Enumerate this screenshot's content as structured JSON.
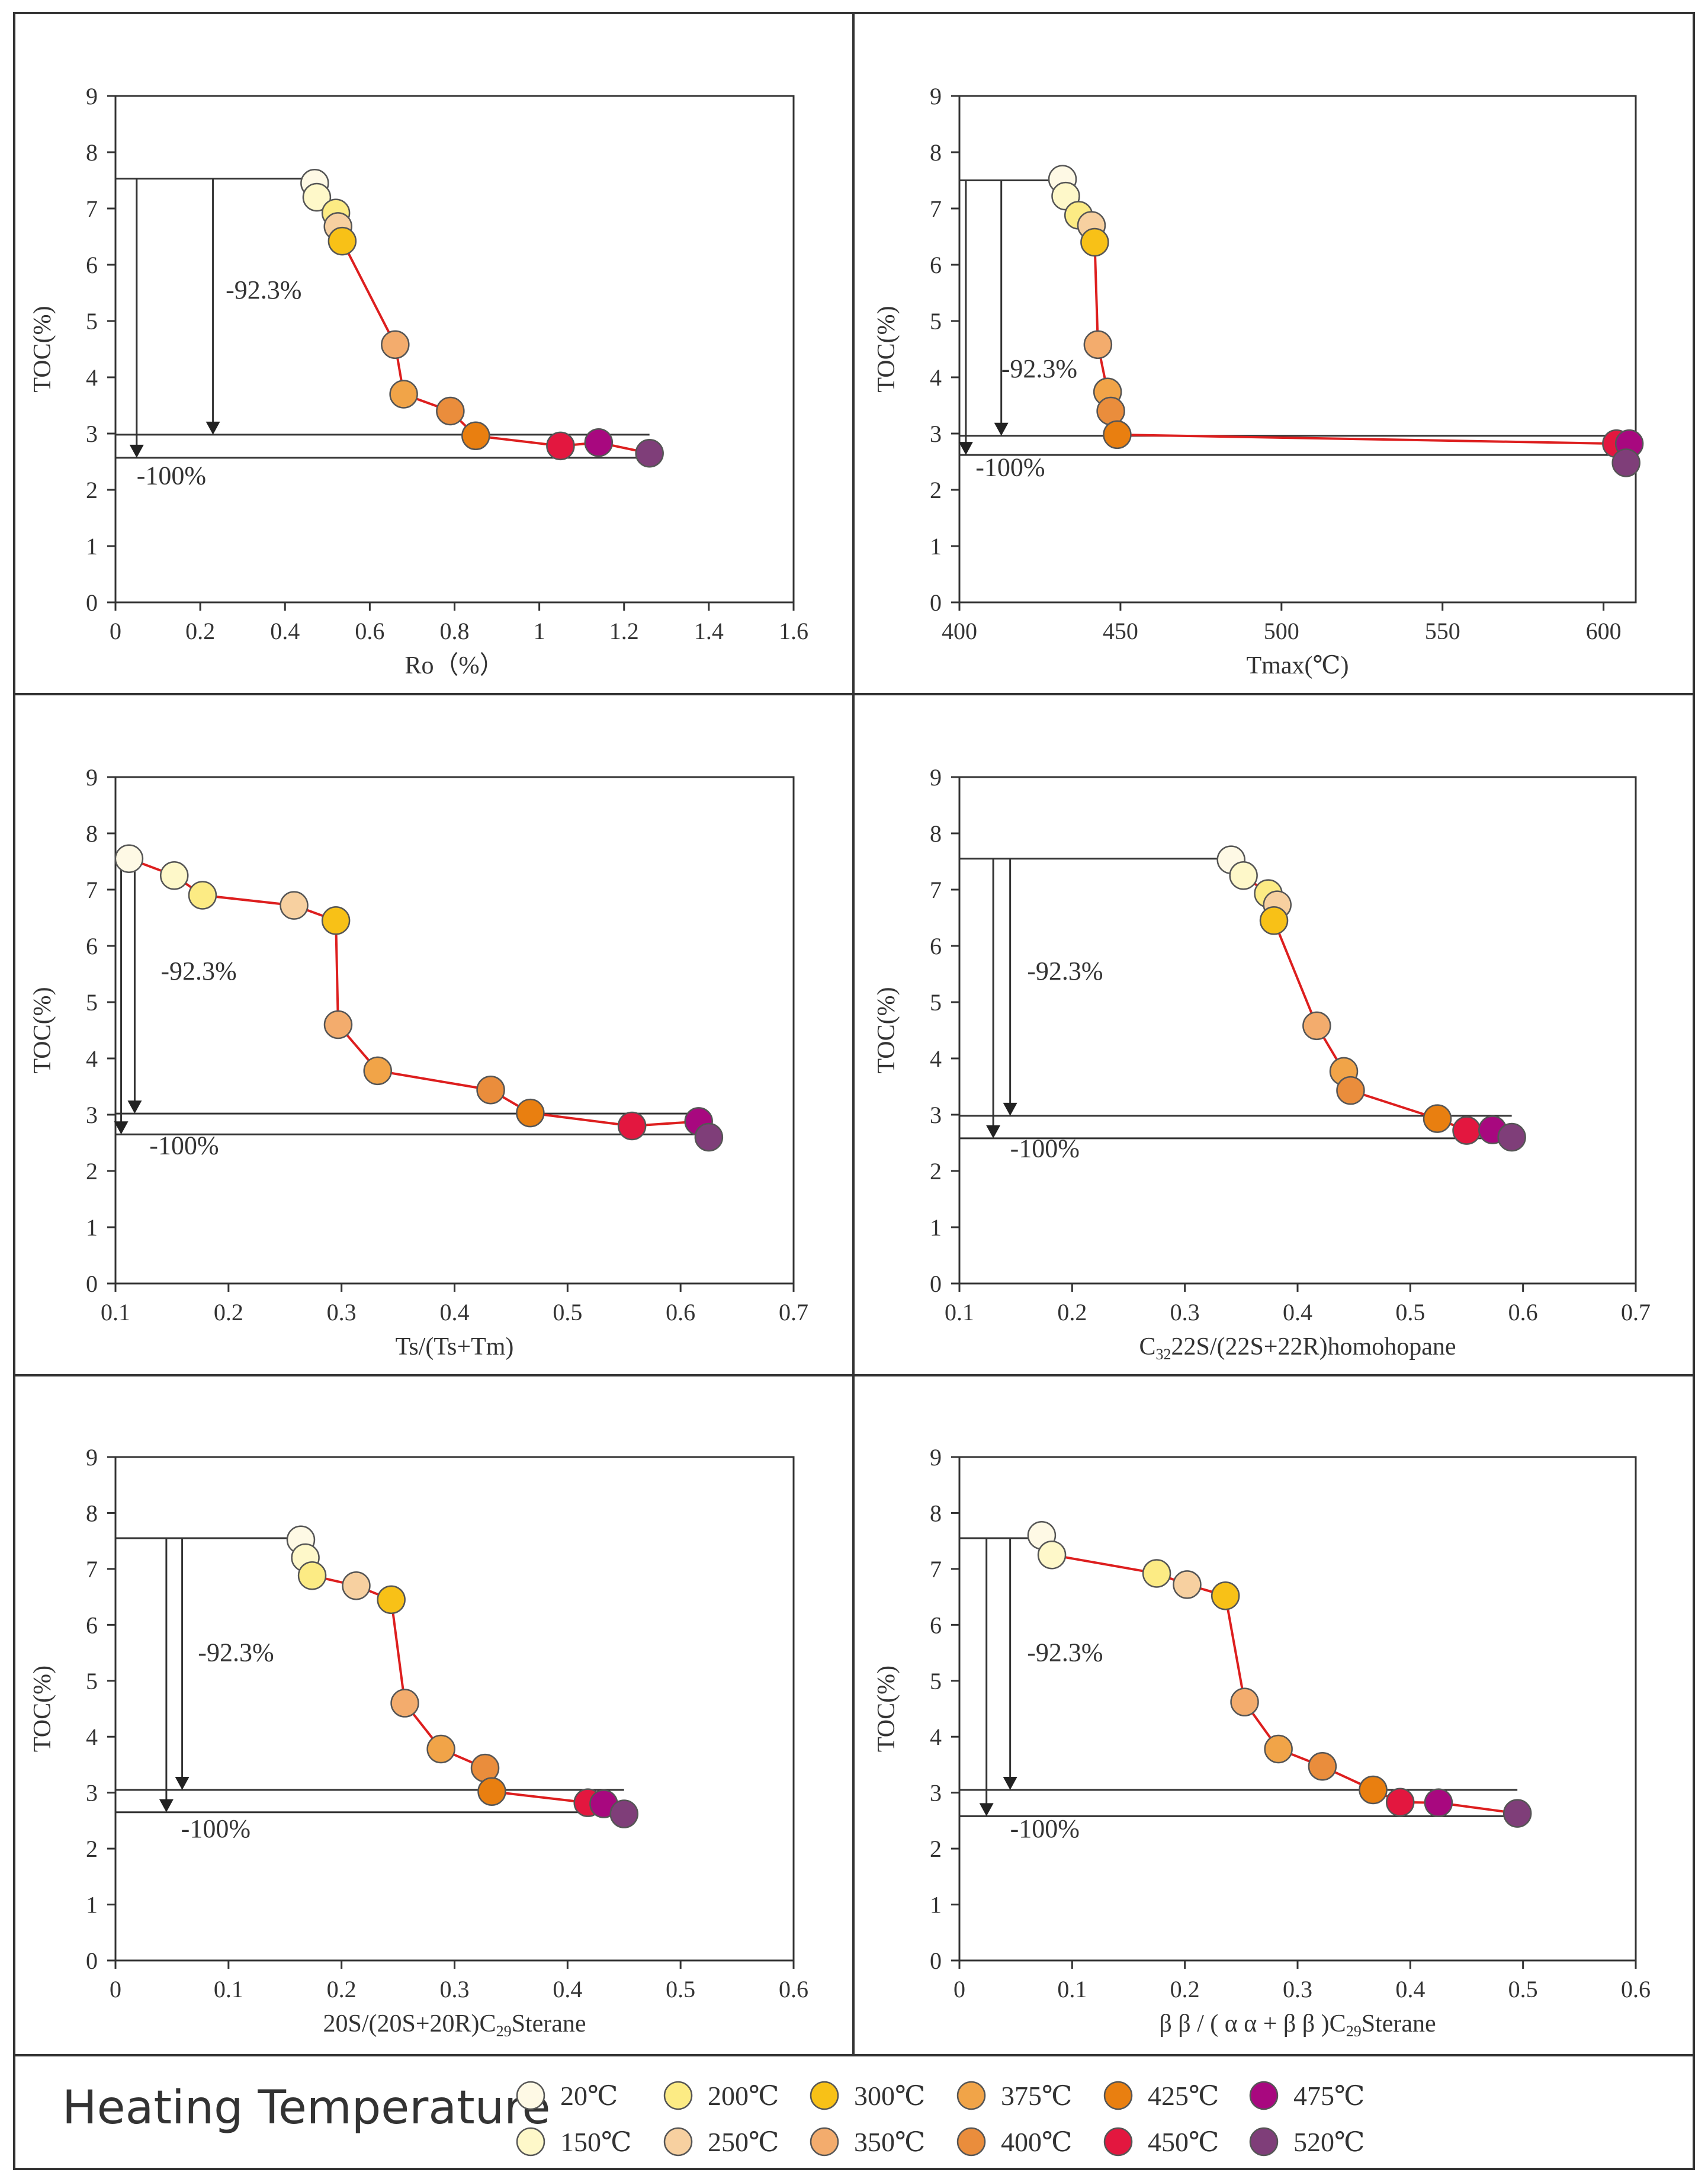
{
  "figure": {
    "legend_title": "Heating Temperature"
  },
  "temperatures": [
    {
      "label": "20℃",
      "color": "#FEF9E5"
    },
    {
      "label": "150℃",
      "color": "#FEF8C9"
    },
    {
      "label": "200℃",
      "color": "#FCEB84"
    },
    {
      "label": "250℃",
      "color": "#F7D0A0"
    },
    {
      "label": "300℃",
      "color": "#F8C117"
    },
    {
      "label": "350℃",
      "color": "#F3AC6D"
    },
    {
      "label": "375℃",
      "color": "#F1A448"
    },
    {
      "label": "400℃",
      "color": "#EA8D3C"
    },
    {
      "label": "425℃",
      "color": "#E97F10"
    },
    {
      "label": "450℃",
      "color": "#E3173F"
    },
    {
      "label": "475℃",
      "color": "#A8087F"
    },
    {
      "label": "520℃",
      "color": "#7F3E79"
    }
  ],
  "chart_data": [
    {
      "type": "scatter",
      "xlabel": "Ro（%）",
      "ylabel": "TOC(%)",
      "xlim": [
        0,
        1.6
      ],
      "ylim": [
        0,
        9
      ],
      "xticks": [
        0,
        0.2,
        0.4,
        0.6,
        0.8,
        1,
        1.2,
        1.4,
        1.6
      ],
      "xtick_labels": [
        "0",
        "0.2",
        "0.4",
        "0.6",
        "0.8",
        "1",
        "1.2",
        "1.4",
        "1.6"
      ],
      "yticks": [
        0,
        1,
        2,
        3,
        4,
        5,
        6,
        7,
        8,
        9
      ],
      "ytick_labels": [
        "0",
        "1",
        "2",
        "3",
        "4",
        "5",
        "6",
        "7",
        "8",
        "9"
      ],
      "x": [
        0.47,
        0.475,
        0.52,
        0.525,
        0.535,
        0.66,
        0.68,
        0.79,
        0.85,
        1.05,
        1.14,
        1.26
      ],
      "y": [
        7.45,
        7.2,
        6.92,
        6.68,
        6.42,
        4.58,
        3.7,
        3.4,
        2.96,
        2.78,
        2.84,
        2.65
      ],
      "ref_levels": {
        "initial": 7.53,
        "after_923": 2.98,
        "after_100": 2.57
      },
      "arrow_x": [
        0.05,
        0.23
      ],
      "annotations": {
        "pct_923": "-92.3%",
        "pct_100": "-100%"
      },
      "annot_pos": {
        "pct_923_x": 0.26,
        "pct_923_y": 5.4,
        "pct_100_x": 0.05,
        "pct_100_y": 2.1
      }
    },
    {
      "type": "scatter",
      "xlabel": "Tmax(℃)",
      "ylabel": "TOC(%)",
      "xlim": [
        400,
        610
      ],
      "ylim": [
        0,
        9
      ],
      "xticks": [
        400,
        450,
        500,
        550,
        600
      ],
      "xtick_labels": [
        "400",
        "450",
        "500",
        "550",
        "600"
      ],
      "yticks": [
        0,
        1,
        2,
        3,
        4,
        5,
        6,
        7,
        8,
        9
      ],
      "ytick_labels": [
        "0",
        "1",
        "2",
        "3",
        "4",
        "5",
        "6",
        "7",
        "8",
        "9"
      ],
      "x": [
        432,
        433,
        437,
        441,
        442,
        443,
        446,
        447,
        449,
        604,
        608,
        607
      ],
      "y": [
        7.52,
        7.22,
        6.88,
        6.7,
        6.4,
        4.58,
        3.74,
        3.4,
        2.98,
        2.82,
        2.82,
        2.48
      ],
      "ref_levels": {
        "initial": 7.5,
        "after_923": 2.96,
        "after_100": 2.62
      },
      "arrow_x": [
        402,
        413
      ],
      "annotations": {
        "pct_923": "-92.3%",
        "pct_100": "-100%"
      },
      "annot_pos": {
        "pct_923_x": 413,
        "pct_923_y": 4.0,
        "pct_100_x": 405,
        "pct_100_y": 2.25
      }
    },
    {
      "type": "scatter",
      "xlabel": "Ts/(Ts+Tm)",
      "ylabel": "TOC(%)",
      "xlim": [
        0.1,
        0.7
      ],
      "ylim": [
        0,
        9
      ],
      "xticks": [
        0.1,
        0.2,
        0.3,
        0.4,
        0.5,
        0.6,
        0.7
      ],
      "xtick_labels": [
        "0.1",
        "0.2",
        "0.3",
        "0.4",
        "0.5",
        "0.6",
        "0.7"
      ],
      "yticks": [
        0,
        1,
        2,
        3,
        4,
        5,
        6,
        7,
        8,
        9
      ],
      "ytick_labels": [
        "0",
        "1",
        "2",
        "3",
        "4",
        "5",
        "6",
        "7",
        "8",
        "9"
      ],
      "x": [
        0.112,
        0.152,
        0.177,
        0.258,
        0.295,
        0.297,
        0.332,
        0.432,
        0.467,
        0.557,
        0.616,
        0.625
      ],
      "y": [
        7.55,
        7.25,
        6.9,
        6.72,
        6.45,
        4.6,
        3.78,
        3.44,
        3.03,
        2.8,
        2.88,
        2.6
      ],
      "ref_levels": {
        "initial": 7.55,
        "after_923": 3.02,
        "after_100": 2.65
      },
      "arrow_x": [
        0.105,
        0.117
      ],
      "annotations": {
        "pct_923": "-92.3%",
        "pct_100": "-100%"
      },
      "annot_pos": {
        "pct_923_x": 0.14,
        "pct_923_y": 5.4,
        "pct_100_x": 0.13,
        "pct_100_y": 2.3
      }
    },
    {
      "type": "scatter",
      "xlabel_prefix": "C",
      "xlabel_sub": "32",
      "xlabel": "22S/(22S+22R)homohopane",
      "ylabel": "TOC(%)",
      "xlim": [
        0.1,
        0.7
      ],
      "ylim": [
        0,
        9
      ],
      "xticks": [
        0.1,
        0.2,
        0.3,
        0.4,
        0.5,
        0.6,
        0.7
      ],
      "xtick_labels": [
        "0.1",
        "0.2",
        "0.3",
        "0.4",
        "0.5",
        "0.6",
        "0.7"
      ],
      "yticks": [
        0,
        1,
        2,
        3,
        4,
        5,
        6,
        7,
        8,
        9
      ],
      "ytick_labels": [
        "0",
        "1",
        "2",
        "3",
        "4",
        "5",
        "6",
        "7",
        "8",
        "9"
      ],
      "x": [
        0.341,
        0.352,
        0.374,
        0.382,
        0.379,
        0.417,
        0.441,
        0.447,
        0.524,
        0.55,
        0.573,
        0.59
      ],
      "y": [
        7.53,
        7.25,
        6.93,
        6.73,
        6.45,
        4.58,
        3.77,
        3.43,
        2.93,
        2.72,
        2.73,
        2.6
      ],
      "ref_levels": {
        "initial": 7.55,
        "after_923": 2.98,
        "after_100": 2.58
      },
      "arrow_x": [
        0.13,
        0.145
      ],
      "annotations": {
        "pct_923": "-92.3%",
        "pct_100": "-100%"
      },
      "annot_pos": {
        "pct_923_x": 0.16,
        "pct_923_y": 5.4,
        "pct_100_x": 0.145,
        "pct_100_y": 2.25
      }
    },
    {
      "type": "scatter",
      "xlabel": "20S/(20S+20R)",
      "xlabel_suffix": "Sterane",
      "xlabel_sub": "29",
      "xlabel_sub_prefix": "C",
      "ylabel": "TOC(%)",
      "xlim": [
        0,
        0.6
      ],
      "ylim": [
        0,
        9
      ],
      "xticks": [
        0,
        0.1,
        0.2,
        0.3,
        0.4,
        0.5,
        0.6
      ],
      "xtick_labels": [
        "0",
        "0.1",
        "0.2",
        "0.3",
        "0.4",
        "0.5",
        "0.6"
      ],
      "yticks": [
        0,
        1,
        2,
        3,
        4,
        5,
        6,
        7,
        8,
        9
      ],
      "ytick_labels": [
        "0",
        "1",
        "2",
        "3",
        "4",
        "5",
        "6",
        "7",
        "8",
        "9"
      ],
      "x": [
        0.164,
        0.168,
        0.174,
        0.213,
        0.244,
        0.256,
        0.288,
        0.327,
        0.333,
        0.418,
        0.432,
        0.45
      ],
      "y": [
        7.52,
        7.2,
        6.88,
        6.7,
        6.45,
        4.6,
        3.78,
        3.44,
        3.02,
        2.82,
        2.8,
        2.62
      ],
      "ref_levels": {
        "initial": 7.55,
        "after_923": 3.05,
        "after_100": 2.65
      },
      "arrow_x": [
        0.045,
        0.059
      ],
      "annotations": {
        "pct_923": "-92.3%",
        "pct_100": "-100%"
      },
      "annot_pos": {
        "pct_923_x": 0.073,
        "pct_923_y": 5.35,
        "pct_100_x": 0.058,
        "pct_100_y": 2.2
      }
    },
    {
      "type": "scatter",
      "xlabel": "β β / ( α α + β β )",
      "xlabel_suffix": "Sterane",
      "xlabel_sub": "29",
      "xlabel_sub_prefix": "C",
      "ylabel": "TOC(%)",
      "xlim": [
        0,
        0.6
      ],
      "ylim": [
        0,
        9
      ],
      "xticks": [
        0,
        0.1,
        0.2,
        0.3,
        0.4,
        0.5,
        0.6
      ],
      "xtick_labels": [
        "0",
        "0.1",
        "0.2",
        "0.3",
        "0.4",
        "0.5",
        "0.6"
      ],
      "yticks": [
        0,
        1,
        2,
        3,
        4,
        5,
        6,
        7,
        8,
        9
      ],
      "ytick_labels": [
        "0",
        "1",
        "2",
        "3",
        "4",
        "5",
        "6",
        "7",
        "8",
        "9"
      ],
      "x": [
        0.073,
        0.082,
        0.175,
        0.202,
        0.236,
        0.253,
        0.283,
        0.322,
        0.367,
        0.391,
        0.425,
        0.495
      ],
      "y": [
        7.6,
        7.25,
        6.92,
        6.72,
        6.52,
        4.62,
        3.78,
        3.47,
        3.05,
        2.83,
        2.82,
        2.63
      ],
      "ref_levels": {
        "initial": 7.55,
        "after_923": 3.05,
        "after_100": 2.58
      },
      "arrow_x": [
        0.024,
        0.045
      ],
      "annotations": {
        "pct_923": "-92.3%",
        "pct_100": "-100%"
      },
      "annot_pos": {
        "pct_923_x": 0.06,
        "pct_923_y": 5.35,
        "pct_100_x": 0.045,
        "pct_100_y": 2.2
      }
    }
  ]
}
